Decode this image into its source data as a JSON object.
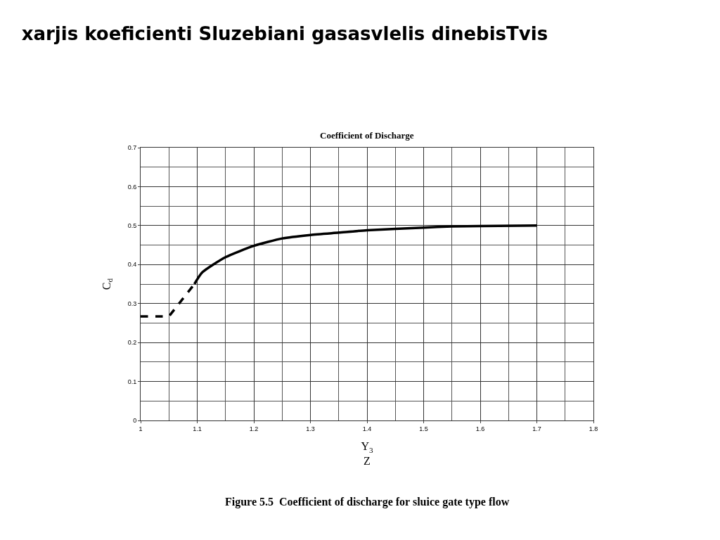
{
  "chart_data": {
    "type": "line",
    "title": "xarjis koeficienti Sluzebiani gasasvlelis dinebisTvis",
    "subtitle": "Coefficient of Discharge",
    "xlabel": "Y$_{3}$\nZ",
    "ylabel": "C$_{d}$",
    "series": [
      {
        "color": "#000000",
        "line_style": "dashed",
        "x": [
          1.0,
          1.05,
          1.095
        ],
        "values": [
          0.267,
          0.267,
          0.35
        ]
      },
      {
        "color": "#000000",
        "line_style": "solid",
        "x": [
          1.095,
          1.109,
          1.15,
          1.2,
          1.25,
          1.3,
          1.35,
          1.4,
          1.5,
          1.55,
          1.6,
          1.7
        ],
        "values": [
          0.35,
          0.38,
          0.419,
          0.448,
          0.467,
          0.476,
          0.482,
          0.488,
          0.495,
          0.498,
          0.499,
          0.5
        ]
      }
    ],
    "xlim": [
      1,
      1.8
    ],
    "xticks": [
      1,
      1.1,
      1.2,
      1.3,
      1.4,
      1.5,
      1.6,
      1.7,
      1.8
    ],
    "ylim": [
      0,
      0.7
    ],
    "yticks": [
      0,
      0.1,
      0.2,
      0.3,
      0.4,
      0.5,
      0.6,
      0.7
    ],
    "grid": true,
    "marker": "none",
    "annotations": [
      "Figure 5.5  Coefficient of discharge for sluice gate type flow"
    ]
  }
}
